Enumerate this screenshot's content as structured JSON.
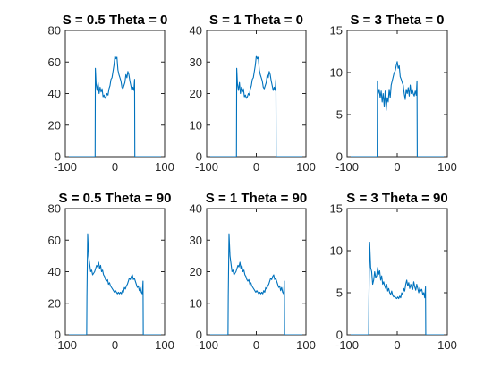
{
  "figure": {
    "line_color": "#0072BD"
  },
  "chart_data": [
    {
      "type": "line",
      "title": "S = 0.5 Theta = 0",
      "xlim": [
        -100,
        100
      ],
      "ylim": [
        0,
        80
      ],
      "xticks": [
        -100,
        0,
        100
      ],
      "yticks": [
        0,
        20,
        40,
        60,
        80
      ],
      "grid": false,
      "series": [
        {
          "x": [
            -100,
            -40,
            -39.5,
            -38,
            -36,
            -34,
            -32,
            -30,
            -28,
            -26,
            -24,
            -22,
            -20,
            -18,
            -16,
            -14,
            -12,
            -10,
            -8,
            -6,
            -4,
            -2,
            0,
            2,
            4,
            6,
            8,
            10,
            12,
            14,
            16,
            18,
            20,
            22,
            24,
            26,
            28,
            30,
            32,
            34,
            36,
            38,
            39.5,
            40,
            100
          ],
          "y": [
            0,
            0,
            56,
            46,
            42,
            47,
            40,
            44,
            41,
            43,
            38,
            39,
            37,
            38,
            40,
            39,
            43,
            45,
            49,
            50,
            54,
            58,
            64,
            62,
            63,
            55,
            52,
            50,
            48,
            44,
            43,
            45,
            47,
            52,
            50,
            54,
            52,
            48,
            45,
            42,
            44,
            42,
            49,
            0,
            0
          ]
        }
      ]
    },
    {
      "type": "line",
      "title": "S = 1 Theta = 0",
      "xlim": [
        -100,
        100
      ],
      "ylim": [
        0,
        40
      ],
      "xticks": [
        -100,
        0,
        100
      ],
      "yticks": [
        0,
        10,
        20,
        30,
        40
      ],
      "grid": false,
      "series": [
        {
          "x": [
            -100,
            -40,
            -39.5,
            -38,
            -36,
            -34,
            -32,
            -30,
            -28,
            -26,
            -24,
            -22,
            -20,
            -18,
            -16,
            -14,
            -12,
            -10,
            -8,
            -6,
            -4,
            -2,
            0,
            2,
            4,
            6,
            8,
            10,
            12,
            14,
            16,
            18,
            20,
            22,
            24,
            26,
            28,
            30,
            32,
            34,
            36,
            38,
            39.5,
            40,
            100
          ],
          "y": [
            0,
            0,
            28,
            23,
            21,
            23.5,
            20,
            22,
            20.5,
            21.5,
            19,
            19.5,
            18.5,
            19,
            20,
            19.5,
            21.5,
            22.5,
            24.5,
            25,
            27,
            29,
            32,
            31,
            31.5,
            27.5,
            26,
            25,
            24,
            22,
            21.5,
            22.5,
            23.5,
            26,
            25,
            27,
            26,
            24,
            22.5,
            21,
            22,
            21,
            24.5,
            0,
            0
          ]
        }
      ]
    },
    {
      "type": "line",
      "title": "S = 3 Theta = 0",
      "xlim": [
        -100,
        100
      ],
      "ylim": [
        0,
        15
      ],
      "xticks": [
        -100,
        0,
        100
      ],
      "yticks": [
        0,
        5,
        10,
        15
      ],
      "grid": false,
      "series": [
        {
          "x": [
            -100,
            -40,
            -39.5,
            -38,
            -36,
            -34,
            -32,
            -30,
            -28,
            -26,
            -24,
            -22,
            -20,
            -18,
            -16,
            -14,
            -12,
            -10,
            -8,
            -6,
            -4,
            -2,
            0,
            2,
            4,
            6,
            8,
            10,
            12,
            14,
            16,
            18,
            20,
            22,
            24,
            26,
            28,
            30,
            32,
            34,
            36,
            38,
            39.5,
            40,
            100
          ],
          "y": [
            0,
            0,
            9,
            7.5,
            8,
            7,
            7.8,
            6.5,
            7.5,
            6,
            7.8,
            5.5,
            7,
            6.5,
            8,
            7,
            8.5,
            9,
            9.5,
            10,
            10.2,
            10.8,
            11.3,
            10.5,
            10.8,
            9.5,
            9.2,
            8.8,
            8.5,
            7.5,
            6.8,
            8,
            7.5,
            8.2,
            7.2,
            8.5,
            7.5,
            8,
            7.5,
            7.2,
            7.8,
            7.3,
            9,
            0,
            0
          ]
        }
      ]
    },
    {
      "type": "line",
      "title": "S = 0.5 Theta = 90",
      "xlim": [
        -100,
        100
      ],
      "ylim": [
        0,
        80
      ],
      "xticks": [
        -100,
        0,
        100
      ],
      "yticks": [
        0,
        20,
        40,
        60,
        80
      ],
      "grid": false,
      "series": [
        {
          "x": [
            -100,
            -57,
            -56.5,
            -55,
            -53,
            -51,
            -49,
            -47,
            -45,
            -43,
            -41,
            -39,
            -37,
            -35,
            -33,
            -31,
            -29,
            -27,
            -25,
            -23,
            -21,
            -19,
            -17,
            -15,
            -13,
            -11,
            -9,
            -7,
            -5,
            -3,
            -1,
            1,
            3,
            5,
            7,
            9,
            11,
            13,
            15,
            17,
            19,
            21,
            23,
            25,
            27,
            29,
            31,
            33,
            35,
            37,
            39,
            41,
            43,
            45,
            47,
            49,
            51,
            53,
            55,
            56.5,
            57,
            100
          ],
          "y": [
            0,
            0,
            24,
            64,
            50,
            45,
            40,
            41,
            38,
            39,
            40,
            42,
            44,
            43,
            46,
            42,
            44,
            40,
            41,
            38,
            37,
            35,
            34,
            35,
            32,
            33,
            31,
            30,
            29,
            28,
            27,
            28,
            27,
            26,
            27,
            26,
            27,
            26,
            28,
            27,
            30,
            29,
            31,
            32,
            34,
            36,
            35,
            37,
            38,
            35,
            36,
            34,
            32,
            30,
            31,
            28,
            30,
            27,
            26,
            34,
            0,
            0
          ]
        }
      ]
    },
    {
      "type": "line",
      "title": "S = 1 Theta = 90",
      "xlim": [
        -100,
        100
      ],
      "ylim": [
        0,
        40
      ],
      "xticks": [
        -100,
        0,
        100
      ],
      "yticks": [
        0,
        10,
        20,
        30,
        40
      ],
      "grid": false,
      "series": [
        {
          "x": [
            -100,
            -57,
            -56.5,
            -55,
            -53,
            -51,
            -49,
            -47,
            -45,
            -43,
            -41,
            -39,
            -37,
            -35,
            -33,
            -31,
            -29,
            -27,
            -25,
            -23,
            -21,
            -19,
            -17,
            -15,
            -13,
            -11,
            -9,
            -7,
            -5,
            -3,
            -1,
            1,
            3,
            5,
            7,
            9,
            11,
            13,
            15,
            17,
            19,
            21,
            23,
            25,
            27,
            29,
            31,
            33,
            35,
            37,
            39,
            41,
            43,
            45,
            47,
            49,
            51,
            53,
            55,
            56.5,
            57,
            100
          ],
          "y": [
            0,
            0,
            12,
            32,
            25,
            22.5,
            20,
            20.5,
            19,
            19.5,
            20,
            21,
            22,
            21.5,
            23,
            21,
            22,
            20,
            20.5,
            19,
            18.5,
            17.5,
            17,
            17.5,
            16,
            16.5,
            15.5,
            15,
            14.5,
            14,
            13.5,
            14,
            13.5,
            13,
            13.5,
            13,
            13.5,
            13,
            14,
            13.5,
            15,
            14.5,
            15.5,
            16,
            17,
            18,
            17.5,
            18.5,
            19,
            17.5,
            18,
            17,
            16,
            15,
            15.5,
            14,
            15,
            13.5,
            13,
            17,
            0,
            0
          ]
        }
      ]
    },
    {
      "type": "line",
      "title": "S = 3 Theta = 90",
      "xlim": [
        -100,
        100
      ],
      "ylim": [
        0,
        15
      ],
      "xticks": [
        -100,
        0,
        100
      ],
      "yticks": [
        0,
        5,
        10,
        15
      ],
      "grid": false,
      "series": [
        {
          "x": [
            -100,
            -57,
            -56.5,
            -55,
            -53,
            -51,
            -49,
            -47,
            -45,
            -43,
            -41,
            -39,
            -37,
            -35,
            -33,
            -31,
            -29,
            -27,
            -25,
            -23,
            -21,
            -19,
            -17,
            -15,
            -13,
            -11,
            -9,
            -7,
            -5,
            -3,
            -1,
            1,
            3,
            5,
            7,
            9,
            11,
            13,
            15,
            17,
            19,
            21,
            23,
            25,
            27,
            29,
            31,
            33,
            35,
            37,
            39,
            41,
            43,
            45,
            47,
            49,
            51,
            53,
            55,
            56.5,
            57,
            100
          ],
          "y": [
            0,
            0,
            4,
            11,
            8,
            7.5,
            6,
            6.5,
            7.5,
            6.8,
            7,
            8,
            7.2,
            7.6,
            6.5,
            7,
            6,
            6.3,
            5.8,
            5.5,
            6,
            5.2,
            5.5,
            5,
            4.8,
            5.2,
            4.7,
            4.5,
            4.6,
            4.4,
            4.3,
            4.5,
            4.3,
            4.6,
            4.4,
            5,
            4.8,
            5.5,
            5.2,
            6,
            6.5,
            5.8,
            6.2,
            5.5,
            6,
            5.6,
            5.4,
            6.3,
            5.7,
            5.3,
            6,
            5.5,
            5,
            5.6,
            5.2,
            5.4,
            4.8,
            5,
            4.4,
            5.7,
            0,
            0
          ]
        }
      ]
    }
  ]
}
